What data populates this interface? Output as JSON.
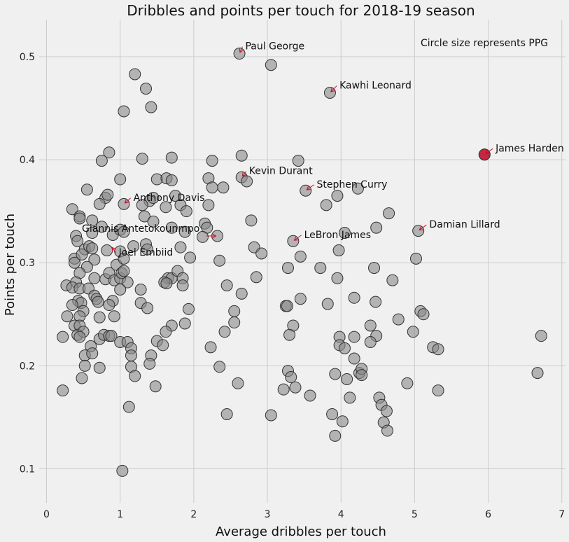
{
  "chart_data": {
    "type": "scatter",
    "title": "Dribbles and points per touch for 2018-19 season",
    "xlabel": "Average dribbles per touch",
    "ylabel": "Points per touch",
    "note": "Circle size represents PPG",
    "xlim": [
      -0.1,
      7.05
    ],
    "ylim": [
      0.067,
      0.536
    ],
    "xticks": [
      0,
      1,
      2,
      3,
      4,
      5,
      6,
      7
    ],
    "yticks": [
      0.1,
      0.2,
      0.3,
      0.4,
      0.5
    ],
    "ytick_labels": [
      "0.1",
      "0.2",
      "0.3",
      "0.4",
      "0.5"
    ],
    "grid": true,
    "colors": {
      "default": "#8a8a8a",
      "highlight": "#c8102e",
      "edge": "#333333",
      "arrow": "#c8102e"
    },
    "highlight": {
      "name": "James Harden",
      "x": 5.95,
      "y": 0.405
    },
    "annotations": [
      {
        "label": "Paul George",
        "x": 2.62,
        "y": 0.503,
        "tx": 2.7,
        "ty": 0.507
      },
      {
        "label": "Kawhi Leonard",
        "x": 3.85,
        "y": 0.465,
        "tx": 3.98,
        "ty": 0.469
      },
      {
        "label": "James Harden",
        "x": 5.95,
        "y": 0.405,
        "tx": 6.1,
        "ty": 0.408
      },
      {
        "label": "Kevin Durant",
        "x": 2.65,
        "y": 0.383,
        "tx": 2.75,
        "ty": 0.386
      },
      {
        "label": "Stephen Curry",
        "x": 3.52,
        "y": 0.37,
        "tx": 3.67,
        "ty": 0.373
      },
      {
        "label": "Anthony Davis",
        "x": 1.05,
        "y": 0.357,
        "tx": 1.18,
        "ty": 0.36
      },
      {
        "label": "Damian Lillard",
        "x": 5.05,
        "y": 0.331,
        "tx": 5.2,
        "ty": 0.334
      },
      {
        "label": "Giannis Antetokounmpo",
        "x": 2.32,
        "y": 0.326,
        "tx": 0.48,
        "ty": 0.33
      },
      {
        "label": "LeBron James",
        "x": 3.35,
        "y": 0.321,
        "tx": 3.5,
        "ty": 0.324
      },
      {
        "label": "Joel Embiid",
        "x": 0.88,
        "y": 0.316,
        "tx": 0.98,
        "ty": 0.307
      }
    ],
    "points": [
      [
        5.95,
        0.405
      ],
      [
        2.62,
        0.503
      ],
      [
        3.05,
        0.492
      ],
      [
        3.85,
        0.465
      ],
      [
        1.2,
        0.483
      ],
      [
        1.35,
        0.469
      ],
      [
        1.42,
        0.451
      ],
      [
        1.05,
        0.447
      ],
      [
        0.85,
        0.407
      ],
      [
        1.7,
        0.402
      ],
      [
        1.3,
        0.401
      ],
      [
        0.75,
        0.399
      ],
      [
        2.65,
        0.404
      ],
      [
        2.25,
        0.399
      ],
      [
        3.42,
        0.399
      ],
      [
        1.0,
        0.381
      ],
      [
        1.5,
        0.381
      ],
      [
        1.63,
        0.382
      ],
      [
        1.7,
        0.38
      ],
      [
        2.2,
        0.382
      ],
      [
        2.65,
        0.383
      ],
      [
        2.72,
        0.379
      ],
      [
        2.25,
        0.373
      ],
      [
        2.4,
        0.373
      ],
      [
        4.23,
        0.372
      ],
      [
        3.52,
        0.37
      ],
      [
        0.55,
        0.371
      ],
      [
        1.4,
        0.36
      ],
      [
        0.8,
        0.363
      ],
      [
        0.83,
        0.366
      ],
      [
        1.05,
        0.357
      ],
      [
        1.3,
        0.356
      ],
      [
        1.75,
        0.365
      ],
      [
        3.95,
        0.365
      ],
      [
        0.72,
        0.357
      ],
      [
        1.45,
        0.363
      ],
      [
        1.62,
        0.354
      ],
      [
        1.82,
        0.356
      ],
      [
        1.9,
        0.35
      ],
      [
        2.2,
        0.356
      ],
      [
        3.8,
        0.356
      ],
      [
        0.35,
        0.352
      ],
      [
        4.65,
        0.348
      ],
      [
        0.45,
        0.345
      ],
      [
        0.45,
        0.343
      ],
      [
        1.33,
        0.345
      ],
      [
        1.45,
        0.34
      ],
      [
        0.62,
        0.341
      ],
      [
        2.78,
        0.341
      ],
      [
        0.75,
        0.335
      ],
      [
        1.7,
        0.334
      ],
      [
        2.15,
        0.338
      ],
      [
        4.48,
        0.334
      ],
      [
        0.4,
        0.326
      ],
      [
        0.62,
        0.329
      ],
      [
        0.9,
        0.327
      ],
      [
        1.0,
        0.332
      ],
      [
        1.05,
        0.33
      ],
      [
        1.88,
        0.33
      ],
      [
        2.18,
        0.334
      ],
      [
        2.32,
        0.326
      ],
      [
        4.05,
        0.329
      ],
      [
        5.05,
        0.331
      ],
      [
        0.42,
        0.321
      ],
      [
        0.52,
        0.313
      ],
      [
        0.58,
        0.316
      ],
      [
        0.62,
        0.314
      ],
      [
        0.82,
        0.312
      ],
      [
        1.0,
        0.311
      ],
      [
        1.18,
        0.316
      ],
      [
        1.35,
        0.318
      ],
      [
        1.37,
        0.313
      ],
      [
        1.82,
        0.315
      ],
      [
        2.82,
        0.315
      ],
      [
        3.35,
        0.321
      ],
      [
        3.97,
        0.312
      ],
      [
        2.12,
        0.325
      ],
      [
        0.38,
        0.304
      ],
      [
        0.38,
        0.3
      ],
      [
        0.48,
        0.308
      ],
      [
        0.65,
        0.303
      ],
      [
        0.95,
        0.298
      ],
      [
        1.05,
        0.304
      ],
      [
        1.95,
        0.305
      ],
      [
        2.35,
        0.302
      ],
      [
        2.92,
        0.309
      ],
      [
        3.45,
        0.306
      ],
      [
        0.55,
        0.296
      ],
      [
        0.45,
        0.29
      ],
      [
        0.65,
        0.285
      ],
      [
        0.8,
        0.284
      ],
      [
        0.85,
        0.29
      ],
      [
        0.92,
        0.283
      ],
      [
        1.0,
        0.285
      ],
      [
        1.02,
        0.29
      ],
      [
        1.05,
        0.292
      ],
      [
        1.1,
        0.281
      ],
      [
        1.65,
        0.285
      ],
      [
        1.7,
        0.285
      ],
      [
        1.78,
        0.292
      ],
      [
        1.85,
        0.285
      ],
      [
        2.85,
        0.286
      ],
      [
        3.72,
        0.295
      ],
      [
        3.95,
        0.285
      ],
      [
        4.45,
        0.295
      ],
      [
        5.02,
        0.304
      ],
      [
        4.7,
        0.283
      ],
      [
        0.27,
        0.278
      ],
      [
        0.4,
        0.281
      ],
      [
        0.35,
        0.276
      ],
      [
        0.45,
        0.275
      ],
      [
        0.57,
        0.275
      ],
      [
        1.0,
        0.274
      ],
      [
        1.28,
        0.274
      ],
      [
        1.6,
        0.281
      ],
      [
        1.63,
        0.28
      ],
      [
        1.85,
        0.278
      ],
      [
        2.45,
        0.278
      ],
      [
        0.65,
        0.268
      ],
      [
        0.68,
        0.265
      ],
      [
        0.43,
        0.263
      ],
      [
        0.47,
        0.261
      ],
      [
        0.7,
        0.262
      ],
      [
        0.9,
        0.263
      ],
      [
        0.35,
        0.259
      ],
      [
        0.85,
        0.259
      ],
      [
        1.28,
        0.261
      ],
      [
        1.37,
        0.256
      ],
      [
        1.93,
        0.255
      ],
      [
        2.65,
        0.27
      ],
      [
        3.25,
        0.258
      ],
      [
        3.27,
        0.258
      ],
      [
        3.45,
        0.265
      ],
      [
        3.82,
        0.26
      ],
      [
        4.18,
        0.266
      ],
      [
        4.47,
        0.262
      ],
      [
        0.5,
        0.253
      ],
      [
        0.28,
        0.248
      ],
      [
        0.45,
        0.248
      ],
      [
        0.72,
        0.247
      ],
      [
        0.92,
        0.248
      ],
      [
        2.55,
        0.253
      ],
      [
        0.38,
        0.239
      ],
      [
        0.45,
        0.239
      ],
      [
        1.7,
        0.239
      ],
      [
        1.88,
        0.241
      ],
      [
        2.55,
        0.242
      ],
      [
        3.35,
        0.239
      ],
      [
        4.78,
        0.245
      ],
      [
        5.08,
        0.253
      ],
      [
        5.12,
        0.25
      ],
      [
        4.4,
        0.239
      ],
      [
        0.42,
        0.23
      ],
      [
        0.5,
        0.233
      ],
      [
        0.45,
        0.228
      ],
      [
        0.22,
        0.228
      ],
      [
        0.72,
        0.226
      ],
      [
        0.78,
        0.23
      ],
      [
        0.85,
        0.229
      ],
      [
        0.88,
        0.229
      ],
      [
        1.0,
        0.223
      ],
      [
        1.1,
        0.223
      ],
      [
        1.5,
        0.224
      ],
      [
        1.62,
        0.233
      ],
      [
        2.42,
        0.233
      ],
      [
        3.3,
        0.23
      ],
      [
        3.98,
        0.228
      ],
      [
        4.18,
        0.228
      ],
      [
        4.98,
        0.233
      ],
      [
        6.72,
        0.229
      ],
      [
        4.48,
        0.229
      ],
      [
        0.6,
        0.219
      ],
      [
        1.15,
        0.217
      ],
      [
        1.58,
        0.22
      ],
      [
        2.23,
        0.218
      ],
      [
        3.98,
        0.22
      ],
      [
        4.05,
        0.217
      ],
      [
        4.4,
        0.223
      ],
      [
        5.25,
        0.218
      ],
      [
        5.32,
        0.216
      ],
      [
        0.52,
        0.21
      ],
      [
        0.62,
        0.212
      ],
      [
        1.15,
        0.21
      ],
      [
        1.42,
        0.21
      ],
      [
        4.18,
        0.207
      ],
      [
        0.52,
        0.2
      ],
      [
        0.72,
        0.198
      ],
      [
        1.15,
        0.199
      ],
      [
        1.4,
        0.202
      ],
      [
        2.35,
        0.199
      ],
      [
        3.28,
        0.195
      ],
      [
        3.32,
        0.189
      ],
      [
        3.92,
        0.192
      ],
      [
        4.25,
        0.193
      ],
      [
        4.28,
        0.197
      ],
      [
        4.28,
        0.191
      ],
      [
        6.67,
        0.193
      ],
      [
        0.48,
        0.188
      ],
      [
        1.2,
        0.19
      ],
      [
        2.6,
        0.183
      ],
      [
        3.22,
        0.177
      ],
      [
        3.38,
        0.179
      ],
      [
        3.58,
        0.171
      ],
      [
        4.08,
        0.187
      ],
      [
        4.12,
        0.169
      ],
      [
        4.52,
        0.169
      ],
      [
        4.55,
        0.162
      ],
      [
        4.9,
        0.183
      ],
      [
        5.32,
        0.176
      ],
      [
        0.22,
        0.176
      ],
      [
        1.48,
        0.18
      ],
      [
        1.12,
        0.16
      ],
      [
        2.45,
        0.153
      ],
      [
        3.05,
        0.152
      ],
      [
        3.88,
        0.153
      ],
      [
        4.02,
        0.146
      ],
      [
        4.58,
        0.145
      ],
      [
        4.62,
        0.156
      ],
      [
        3.92,
        0.132
      ],
      [
        4.63,
        0.137
      ],
      [
        1.03,
        0.098
      ],
      [
        3.28,
        0.295
      ]
    ]
  }
}
